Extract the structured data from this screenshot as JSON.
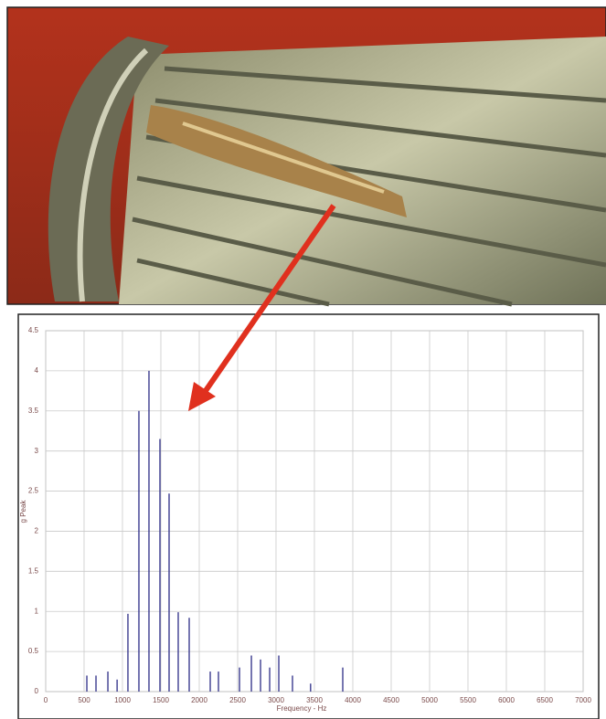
{
  "chart_data": {
    "type": "stem",
    "x_label": "Frequency - Hz",
    "y_label": "g Peak",
    "x": [
      536,
      655,
      810,
      930,
      1071,
      1214,
      1345,
      1488,
      1607,
      1726,
      1869,
      2143,
      2250,
      2524,
      2679,
      2798,
      2917,
      3036,
      3214,
      3450,
      3869
    ],
    "values": [
      0.2,
      0.2,
      0.25,
      0.15,
      0.97,
      3.5,
      4.0,
      3.15,
      2.47,
      0.99,
      0.92,
      0.25,
      0.25,
      0.3,
      0.45,
      0.4,
      0.3,
      0.45,
      0.2,
      0.1,
      0.3
    ],
    "color": "#3b3b8f",
    "xlim": [
      0,
      7000
    ],
    "xticks": [
      0,
      500,
      1000,
      1500,
      2000,
      2500,
      3000,
      3500,
      4000,
      4500,
      5000,
      5500,
      6000,
      6500,
      7000
    ],
    "ylim": [
      0,
      4.5
    ],
    "yticks": [
      0,
      0.5,
      1,
      1.5,
      2,
      2.5,
      3,
      3.5,
      4,
      4.5
    ],
    "grid": true
  }
}
